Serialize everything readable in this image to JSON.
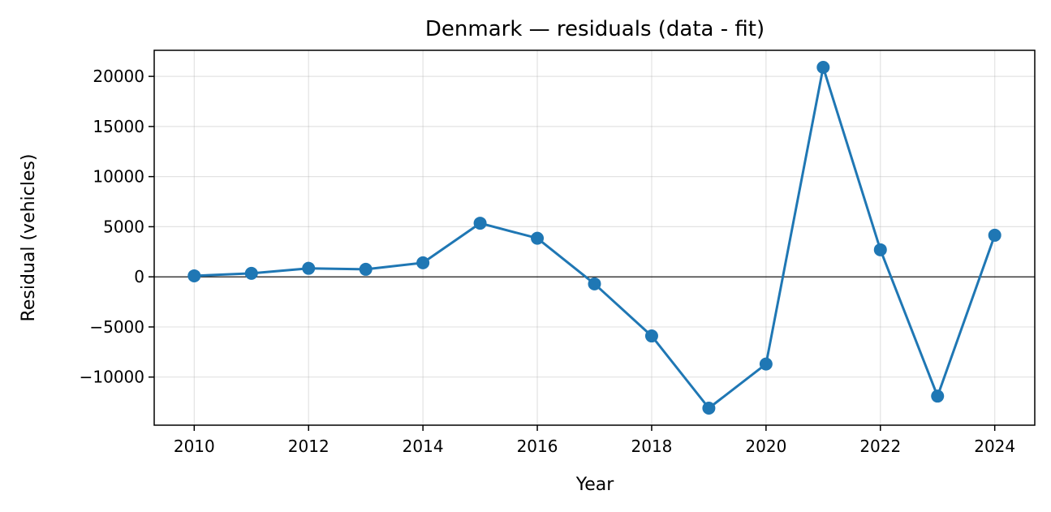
{
  "chart_data": {
    "type": "line",
    "title": "Denmark — residuals (data - fit)",
    "xlabel": "Year",
    "ylabel": "Residual (vehicles)",
    "x": [
      2010,
      2011,
      2012,
      2013,
      2014,
      2015,
      2016,
      2017,
      2018,
      2019,
      2020,
      2021,
      2022,
      2023,
      2024
    ],
    "series": [
      {
        "values": [
          100,
          350,
          850,
          750,
          1400,
          5350,
          3850,
          -700,
          -5900,
          -13100,
          -8700,
          20900,
          2700,
          -11900,
          4150
        ],
        "color": "#1f77b4"
      }
    ],
    "xlim": [
      2009.3,
      2024.7
    ],
    "ylim": [
      -14800,
      22600
    ],
    "xticks": [
      2010,
      2012,
      2014,
      2016,
      2018,
      2020,
      2022,
      2024
    ],
    "xtick_labels": [
      "2010",
      "2012",
      "2014",
      "2016",
      "2018",
      "2020",
      "2022",
      "2024"
    ],
    "yticks": [
      -10000,
      -5000,
      0,
      5000,
      10000,
      15000,
      20000
    ],
    "ytick_labels": [
      "−10000",
      "−5000",
      "0",
      "5000",
      "10000",
      "15000",
      "20000"
    ],
    "grid": true,
    "reference_line": 0
  }
}
